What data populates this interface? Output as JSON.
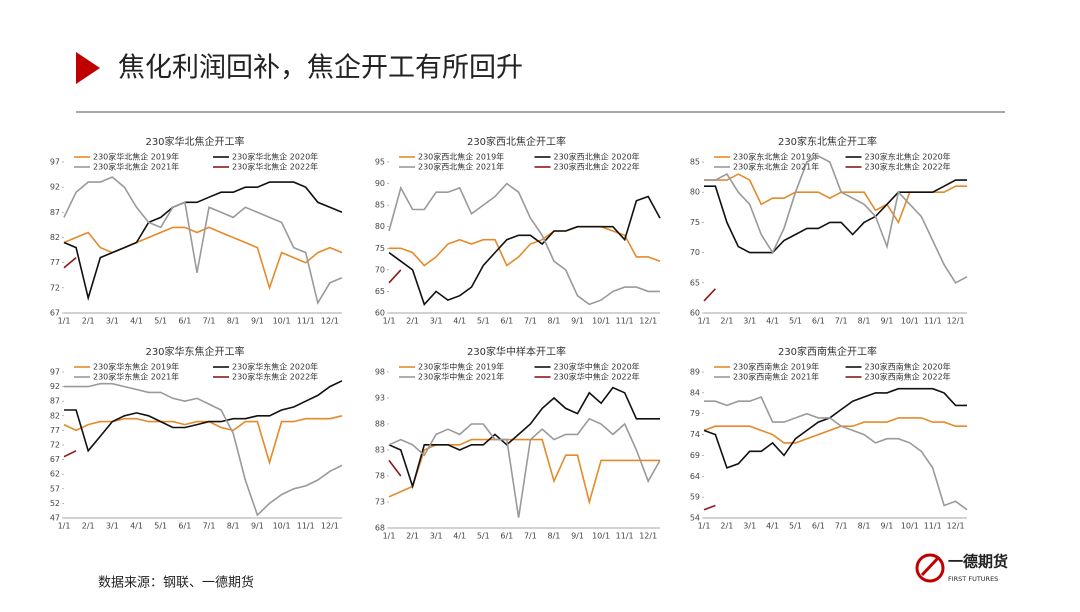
{
  "header": {
    "title": "焦化利润回补，焦企开工有所回升"
  },
  "source": "数据来源：钢联、一德期货",
  "logo": {
    "name": "一德期货",
    "sub": "FIRST FUTURES"
  },
  "chart_data": [
    {
      "type": "line",
      "title": "230家华北焦企开工率",
      "categories": [
        "1/1",
        null,
        "2/1",
        null,
        "3/1",
        null,
        "4/1",
        null,
        "5/1",
        null,
        "6/1",
        null,
        "7/1",
        null,
        "8/1",
        null,
        "9/1",
        null,
        "10/1",
        null,
        "11/1",
        null,
        "12/1",
        null
      ],
      "ylim": [
        67,
        97
      ],
      "yticks": [
        67,
        72,
        77,
        82,
        87,
        92,
        97
      ],
      "series": [
        {
          "name": "230家华北焦企 2019年",
          "color": "#E58A2B",
          "values": [
            81,
            82,
            83,
            80,
            79,
            80,
            81,
            82,
            83,
            84,
            84,
            83,
            84,
            83,
            82,
            81,
            80,
            72,
            79,
            78,
            77,
            79,
            80,
            79
          ]
        },
        {
          "name": "230家华北焦企 2020年",
          "color": "#111111",
          "values": [
            81,
            80,
            70,
            78,
            79,
            80,
            81,
            85,
            86,
            88,
            89,
            89,
            90,
            91,
            91,
            92,
            92,
            93,
            93,
            93,
            92,
            89,
            88,
            87
          ]
        },
        {
          "name": "230家华北焦企 2021年",
          "color": "#9A9A9A",
          "values": [
            86,
            91,
            93,
            93,
            94,
            92,
            88,
            85,
            84,
            88,
            89,
            75,
            88,
            87,
            86,
            88,
            87,
            86,
            85,
            80,
            79,
            69,
            73,
            74
          ]
        },
        {
          "name": "230家华北焦企 2022年",
          "color": "#8B1A1A",
          "values": [
            76,
            78,
            null,
            null,
            null,
            null,
            null,
            null,
            null,
            null,
            null,
            null,
            null,
            null,
            null,
            null,
            null,
            null,
            null,
            null,
            null,
            null,
            null,
            null
          ]
        }
      ]
    },
    {
      "type": "line",
      "title": "230家西北焦企开工率",
      "categories": [
        "1/1",
        null,
        "2/1",
        null,
        "3/1",
        null,
        "4/1",
        null,
        "5/1",
        null,
        "6/1",
        null,
        "7/1",
        null,
        "8/1",
        null,
        "9/1",
        null,
        "10/1",
        null,
        "11/1",
        null,
        "12/1",
        null
      ],
      "ylim": [
        60,
        95
      ],
      "yticks": [
        60,
        65,
        70,
        75,
        80,
        85,
        90,
        95
      ],
      "series": [
        {
          "name": "230家西北焦企 2019年",
          "color": "#E58A2B",
          "values": [
            75,
            75,
            74,
            71,
            73,
            76,
            77,
            76,
            77,
            77,
            71,
            73,
            76,
            77,
            79,
            79,
            80,
            80,
            80,
            79,
            78,
            73,
            73,
            72
          ]
        },
        {
          "name": "230家西北焦企 2020年",
          "color": "#111111",
          "values": [
            74,
            72,
            70,
            62,
            65,
            63,
            64,
            66,
            71,
            74,
            77,
            78,
            78,
            76,
            79,
            79,
            80,
            80,
            80,
            80,
            77,
            86,
            87,
            82
          ]
        },
        {
          "name": "230家西北焦企 2021年",
          "color": "#9A9A9A",
          "values": [
            79,
            89,
            84,
            84,
            88,
            88,
            89,
            83,
            85,
            87,
            90,
            88,
            82,
            78,
            72,
            70,
            64,
            62,
            63,
            65,
            66,
            66,
            65,
            65
          ]
        },
        {
          "name": "230家西北焦企 2022年",
          "color": "#8B1A1A",
          "values": [
            67,
            70,
            null,
            null,
            null,
            null,
            null,
            null,
            null,
            null,
            null,
            null,
            null,
            null,
            null,
            null,
            null,
            null,
            null,
            null,
            null,
            null,
            null,
            null
          ]
        }
      ]
    },
    {
      "type": "line",
      "title": "230家东北焦企开工率",
      "categories": [
        "1/1",
        null,
        "2/1",
        null,
        "3/1",
        null,
        "4/1",
        null,
        "5/1",
        null,
        "6/1",
        null,
        "7/1",
        null,
        "8/1",
        null,
        "9/1",
        null,
        "10/1",
        null,
        "11/1",
        null,
        "12/1",
        null
      ],
      "ylim": [
        60,
        85
      ],
      "yticks": [
        60,
        65,
        70,
        75,
        80,
        85
      ],
      "series": [
        {
          "name": "230家东北焦企 2019年",
          "color": "#E58A2B",
          "values": [
            82,
            82,
            82,
            83,
            82,
            78,
            79,
            79,
            80,
            80,
            80,
            79,
            80,
            80,
            80,
            77,
            78,
            75,
            80,
            80,
            80,
            80,
            81,
            81
          ]
        },
        {
          "name": "230家东北焦企 2020年",
          "color": "#111111",
          "values": [
            81,
            81,
            75,
            71,
            70,
            70,
            70,
            72,
            73,
            74,
            74,
            75,
            75,
            73,
            75,
            76,
            78,
            80,
            80,
            80,
            80,
            81,
            82,
            82
          ]
        },
        {
          "name": "230家东北焦企 2021年",
          "color": "#9A9A9A",
          "values": [
            82,
            82,
            83,
            80,
            78,
            73,
            70,
            74,
            80,
            85,
            86,
            85,
            80,
            79,
            78,
            76,
            71,
            80,
            78,
            76,
            72,
            68,
            65,
            66
          ]
        },
        {
          "name": "230家东北焦企 2022年",
          "color": "#8B1A1A",
          "values": [
            62,
            64,
            null,
            null,
            null,
            null,
            null,
            null,
            null,
            null,
            null,
            null,
            null,
            null,
            null,
            null,
            null,
            null,
            null,
            null,
            null,
            null,
            null,
            null
          ]
        }
      ]
    },
    {
      "type": "line",
      "title": "230家华东焦企开工率",
      "categories": [
        "1/1",
        null,
        "2/1",
        null,
        "3/1",
        null,
        "4/1",
        null,
        "5/1",
        null,
        "6/1",
        null,
        "7/1",
        null,
        "8/1",
        null,
        "9/1",
        null,
        "10/1",
        null,
        "11/1",
        null,
        "12/1",
        null
      ],
      "ylim": [
        47,
        97
      ],
      "yticks": [
        47,
        52,
        57,
        62,
        67,
        72,
        77,
        82,
        87,
        92,
        97
      ],
      "series": [
        {
          "name": "230家华东焦企 2019年",
          "color": "#E58A2B",
          "values": [
            79,
            77,
            79,
            80,
            80,
            81,
            81,
            80,
            80,
            80,
            79,
            80,
            80,
            78,
            77,
            80,
            80,
            66,
            80,
            80,
            81,
            81,
            81,
            82
          ]
        },
        {
          "name": "230家华东焦企 2020年",
          "color": "#111111",
          "values": [
            84,
            84,
            70,
            75,
            80,
            82,
            83,
            82,
            80,
            78,
            78,
            79,
            80,
            80,
            81,
            81,
            82,
            82,
            84,
            85,
            87,
            89,
            92,
            94
          ]
        },
        {
          "name": "230家华东焦企 2021年",
          "color": "#9A9A9A",
          "values": [
            92,
            92,
            92,
            93,
            93,
            92,
            91,
            90,
            90,
            88,
            87,
            88,
            86,
            84,
            76,
            60,
            48,
            52,
            55,
            57,
            58,
            60,
            63,
            65
          ]
        },
        {
          "name": "230家华东焦企 2022年",
          "color": "#8B1A1A",
          "values": [
            68,
            70,
            null,
            null,
            null,
            null,
            null,
            null,
            null,
            null,
            null,
            null,
            null,
            null,
            null,
            null,
            null,
            null,
            null,
            null,
            null,
            null,
            null,
            null
          ]
        }
      ]
    },
    {
      "type": "line",
      "title": "230家华中样本开工率",
      "categories": [
        "1/1",
        null,
        "2/1",
        null,
        "3/1",
        null,
        "4/1",
        null,
        "5/1",
        null,
        "6/1",
        null,
        "7/1",
        null,
        "8/1",
        null,
        "9/1",
        null,
        "10/1",
        null,
        "11/1",
        null,
        "12/1",
        null
      ],
      "ylim": [
        68,
        98
      ],
      "yticks": [
        68,
        73,
        78,
        83,
        88,
        93,
        98
      ],
      "series": [
        {
          "name": "230家华中焦企 2019年",
          "color": "#E58A2B",
          "values": [
            74,
            75,
            76,
            83,
            84,
            84,
            84,
            85,
            85,
            85,
            85,
            85,
            85,
            85,
            77,
            82,
            82,
            73,
            81,
            81,
            81,
            81,
            81,
            81
          ]
        },
        {
          "name": "230家华中焦企 2020年",
          "color": "#111111",
          "values": [
            84,
            83,
            76,
            84,
            84,
            84,
            83,
            84,
            84,
            86,
            84,
            86,
            88,
            91,
            93,
            91,
            90,
            94,
            92,
            95,
            94,
            89,
            89,
            89
          ]
        },
        {
          "name": "230家华中焦企 2021年",
          "color": "#9A9A9A",
          "values": [
            84,
            85,
            84,
            82,
            86,
            87,
            86,
            88,
            88,
            85,
            85,
            70,
            85,
            87,
            85,
            86,
            86,
            89,
            88,
            86,
            88,
            83,
            77,
            81
          ]
        },
        {
          "name": "230家华中焦企 2022年",
          "color": "#8B1A1A",
          "values": [
            81,
            78,
            null,
            null,
            null,
            null,
            null,
            null,
            null,
            null,
            null,
            null,
            null,
            null,
            null,
            null,
            null,
            null,
            null,
            null,
            null,
            null,
            null,
            null
          ]
        }
      ]
    },
    {
      "type": "line",
      "title": "230家西南焦企开工率",
      "categories": [
        "1/1",
        null,
        "2/1",
        null,
        "3/1",
        null,
        "4/1",
        null,
        "5/1",
        null,
        "6/1",
        null,
        "7/1",
        null,
        "8/1",
        null,
        "9/1",
        null,
        "10/1",
        null,
        "11/1",
        null,
        "12/1",
        null
      ],
      "ylim": [
        54,
        89
      ],
      "yticks": [
        54,
        59,
        64,
        69,
        74,
        79,
        84,
        89
      ],
      "series": [
        {
          "name": "230家西南焦企 2019年",
          "color": "#E58A2B",
          "values": [
            75,
            76,
            76,
            76,
            76,
            75,
            74,
            72,
            72,
            73,
            74,
            75,
            76,
            76,
            77,
            77,
            77,
            78,
            78,
            78,
            77,
            77,
            76,
            76
          ]
        },
        {
          "name": "230家西南焦企 2020年",
          "color": "#111111",
          "values": [
            75,
            74,
            66,
            67,
            70,
            70,
            72,
            69,
            73,
            75,
            77,
            78,
            80,
            82,
            83,
            84,
            84,
            85,
            85,
            85,
            85,
            84,
            81,
            81
          ]
        },
        {
          "name": "230家西南焦企 2021年",
          "color": "#9A9A9A",
          "values": [
            82,
            82,
            81,
            82,
            82,
            83,
            77,
            77,
            78,
            79,
            78,
            78,
            76,
            75,
            74,
            72,
            73,
            73,
            72,
            70,
            66,
            57,
            58,
            56
          ]
        },
        {
          "name": "230家西南焦企 2022年",
          "color": "#8B1A1A",
          "values": [
            56,
            57,
            null,
            null,
            null,
            null,
            null,
            null,
            null,
            null,
            null,
            null,
            null,
            null,
            null,
            null,
            null,
            null,
            null,
            null,
            null,
            null,
            null,
            null
          ]
        }
      ]
    }
  ]
}
